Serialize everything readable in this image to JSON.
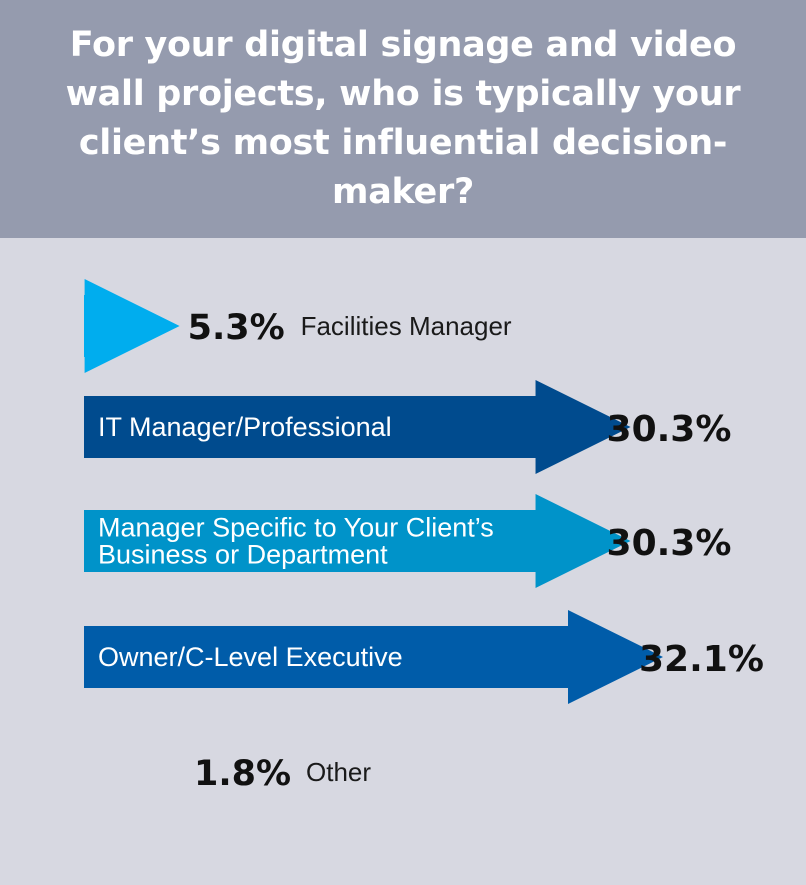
{
  "title": "For your digital signage and video wall projects, who is typically your client’s most influential decision-maker?",
  "colors": {
    "header_bg": "#959bae",
    "panel_bg": "#d7d8e1",
    "facilities": "#00adee",
    "it": "#004b8e",
    "department": "#0093c9",
    "owner": "#005ca9"
  },
  "chart_data": {
    "type": "bar",
    "orientation": "horizontal",
    "categories": [
      "Facilities Manager",
      "IT Manager/Professional",
      "Manager Specific to Your Client’s Business or Department",
      "Owner/C-Level Executive",
      "Other"
    ],
    "category_lines": [
      [
        "Facilities Manager"
      ],
      [
        "IT Manager/Professional"
      ],
      [
        "Manager Specific to Your Client’s",
        "Business or Department"
      ],
      [
        "Owner/C-Level Executive"
      ],
      [
        "Other"
      ]
    ],
    "values": [
      5.3,
      30.3,
      30.3,
      32.1,
      1.8
    ],
    "value_labels": [
      "5.3%",
      "30.3%",
      "30.3%",
      "32.1%",
      "1.8%"
    ],
    "series_colors": [
      "#00adee",
      "#004b8e",
      "#0093c9",
      "#005ca9",
      null
    ],
    "xlim": [
      0,
      35
    ],
    "grid": false,
    "legend": "none"
  }
}
